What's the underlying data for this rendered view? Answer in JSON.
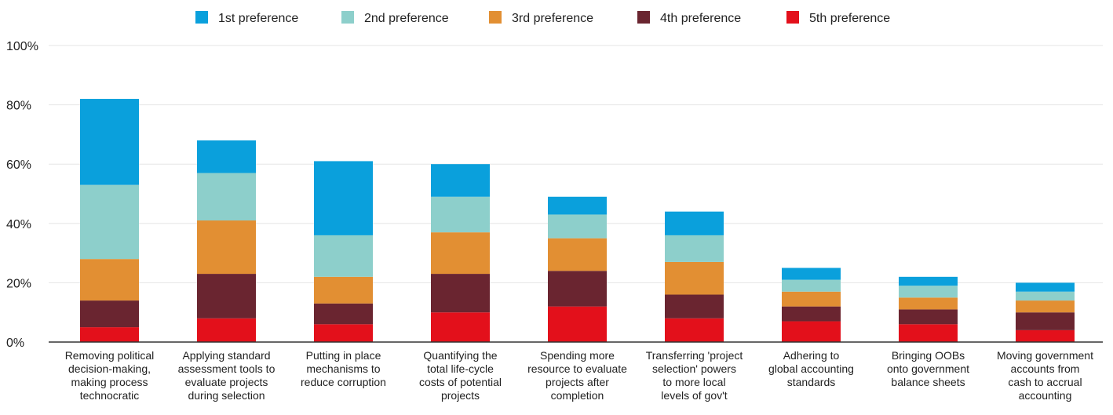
{
  "colors": {
    "pref1": "#0aa0dc",
    "pref2": "#8dcfcb",
    "pref3": "#e28f33",
    "pref4": "#6a2530",
    "pref5": "#e3101b",
    "grid": "#e6e6e6",
    "axis": "#333333",
    "text": "#222222"
  },
  "chart_data": {
    "type": "bar",
    "stacked": true,
    "title": "",
    "xlabel": "",
    "ylabel": "",
    "ylim": [
      0,
      100
    ],
    "yticks": [
      0,
      20,
      40,
      60,
      80,
      100
    ],
    "ytick_labels": [
      "0%",
      "20%",
      "40%",
      "60%",
      "80%",
      "100%"
    ],
    "grid": true,
    "legend_position": "top",
    "categories": [
      [
        "Removing political",
        "decision-making,",
        "making process",
        "technocratic"
      ],
      [
        "Applying standard",
        "assessment tools to",
        "evaluate projects",
        "during selection"
      ],
      [
        "Putting in place",
        "mechanisms to",
        "reduce corruption"
      ],
      [
        "Quantifying the",
        "total life-cycle",
        "costs of potential",
        "projects"
      ],
      [
        "Spending more",
        "resource to evaluate",
        "projects after",
        "completion"
      ],
      [
        "Transferring 'project",
        "selection' powers",
        "to more local",
        "levels of gov't"
      ],
      [
        "Adhering to",
        "global accounting",
        "standards"
      ],
      [
        "Bringing OOBs",
        "onto government",
        "balance sheets"
      ],
      [
        "Moving government",
        "accounts from",
        "cash to accrual",
        "accounting"
      ]
    ],
    "series": [
      {
        "name": "5th preference",
        "color_key": "pref5",
        "values": [
          5,
          8,
          6,
          10,
          12,
          8,
          7,
          6,
          4
        ]
      },
      {
        "name": "4th preference",
        "color_key": "pref4",
        "values": [
          9,
          15,
          7,
          13,
          12,
          8,
          5,
          5,
          6
        ]
      },
      {
        "name": "3rd preference",
        "color_key": "pref3",
        "values": [
          14,
          18,
          9,
          14,
          11,
          11,
          5,
          4,
          4
        ]
      },
      {
        "name": "2nd preference",
        "color_key": "pref2",
        "values": [
          25,
          16,
          14,
          12,
          8,
          9,
          4,
          4,
          3
        ]
      },
      {
        "name": "1st preference",
        "color_key": "pref1",
        "values": [
          29,
          11,
          25,
          11,
          6,
          8,
          4,
          3,
          3
        ]
      }
    ],
    "legend_order": [
      "1st preference",
      "2nd preference",
      "3rd preference",
      "4th preference",
      "5th preference"
    ]
  }
}
